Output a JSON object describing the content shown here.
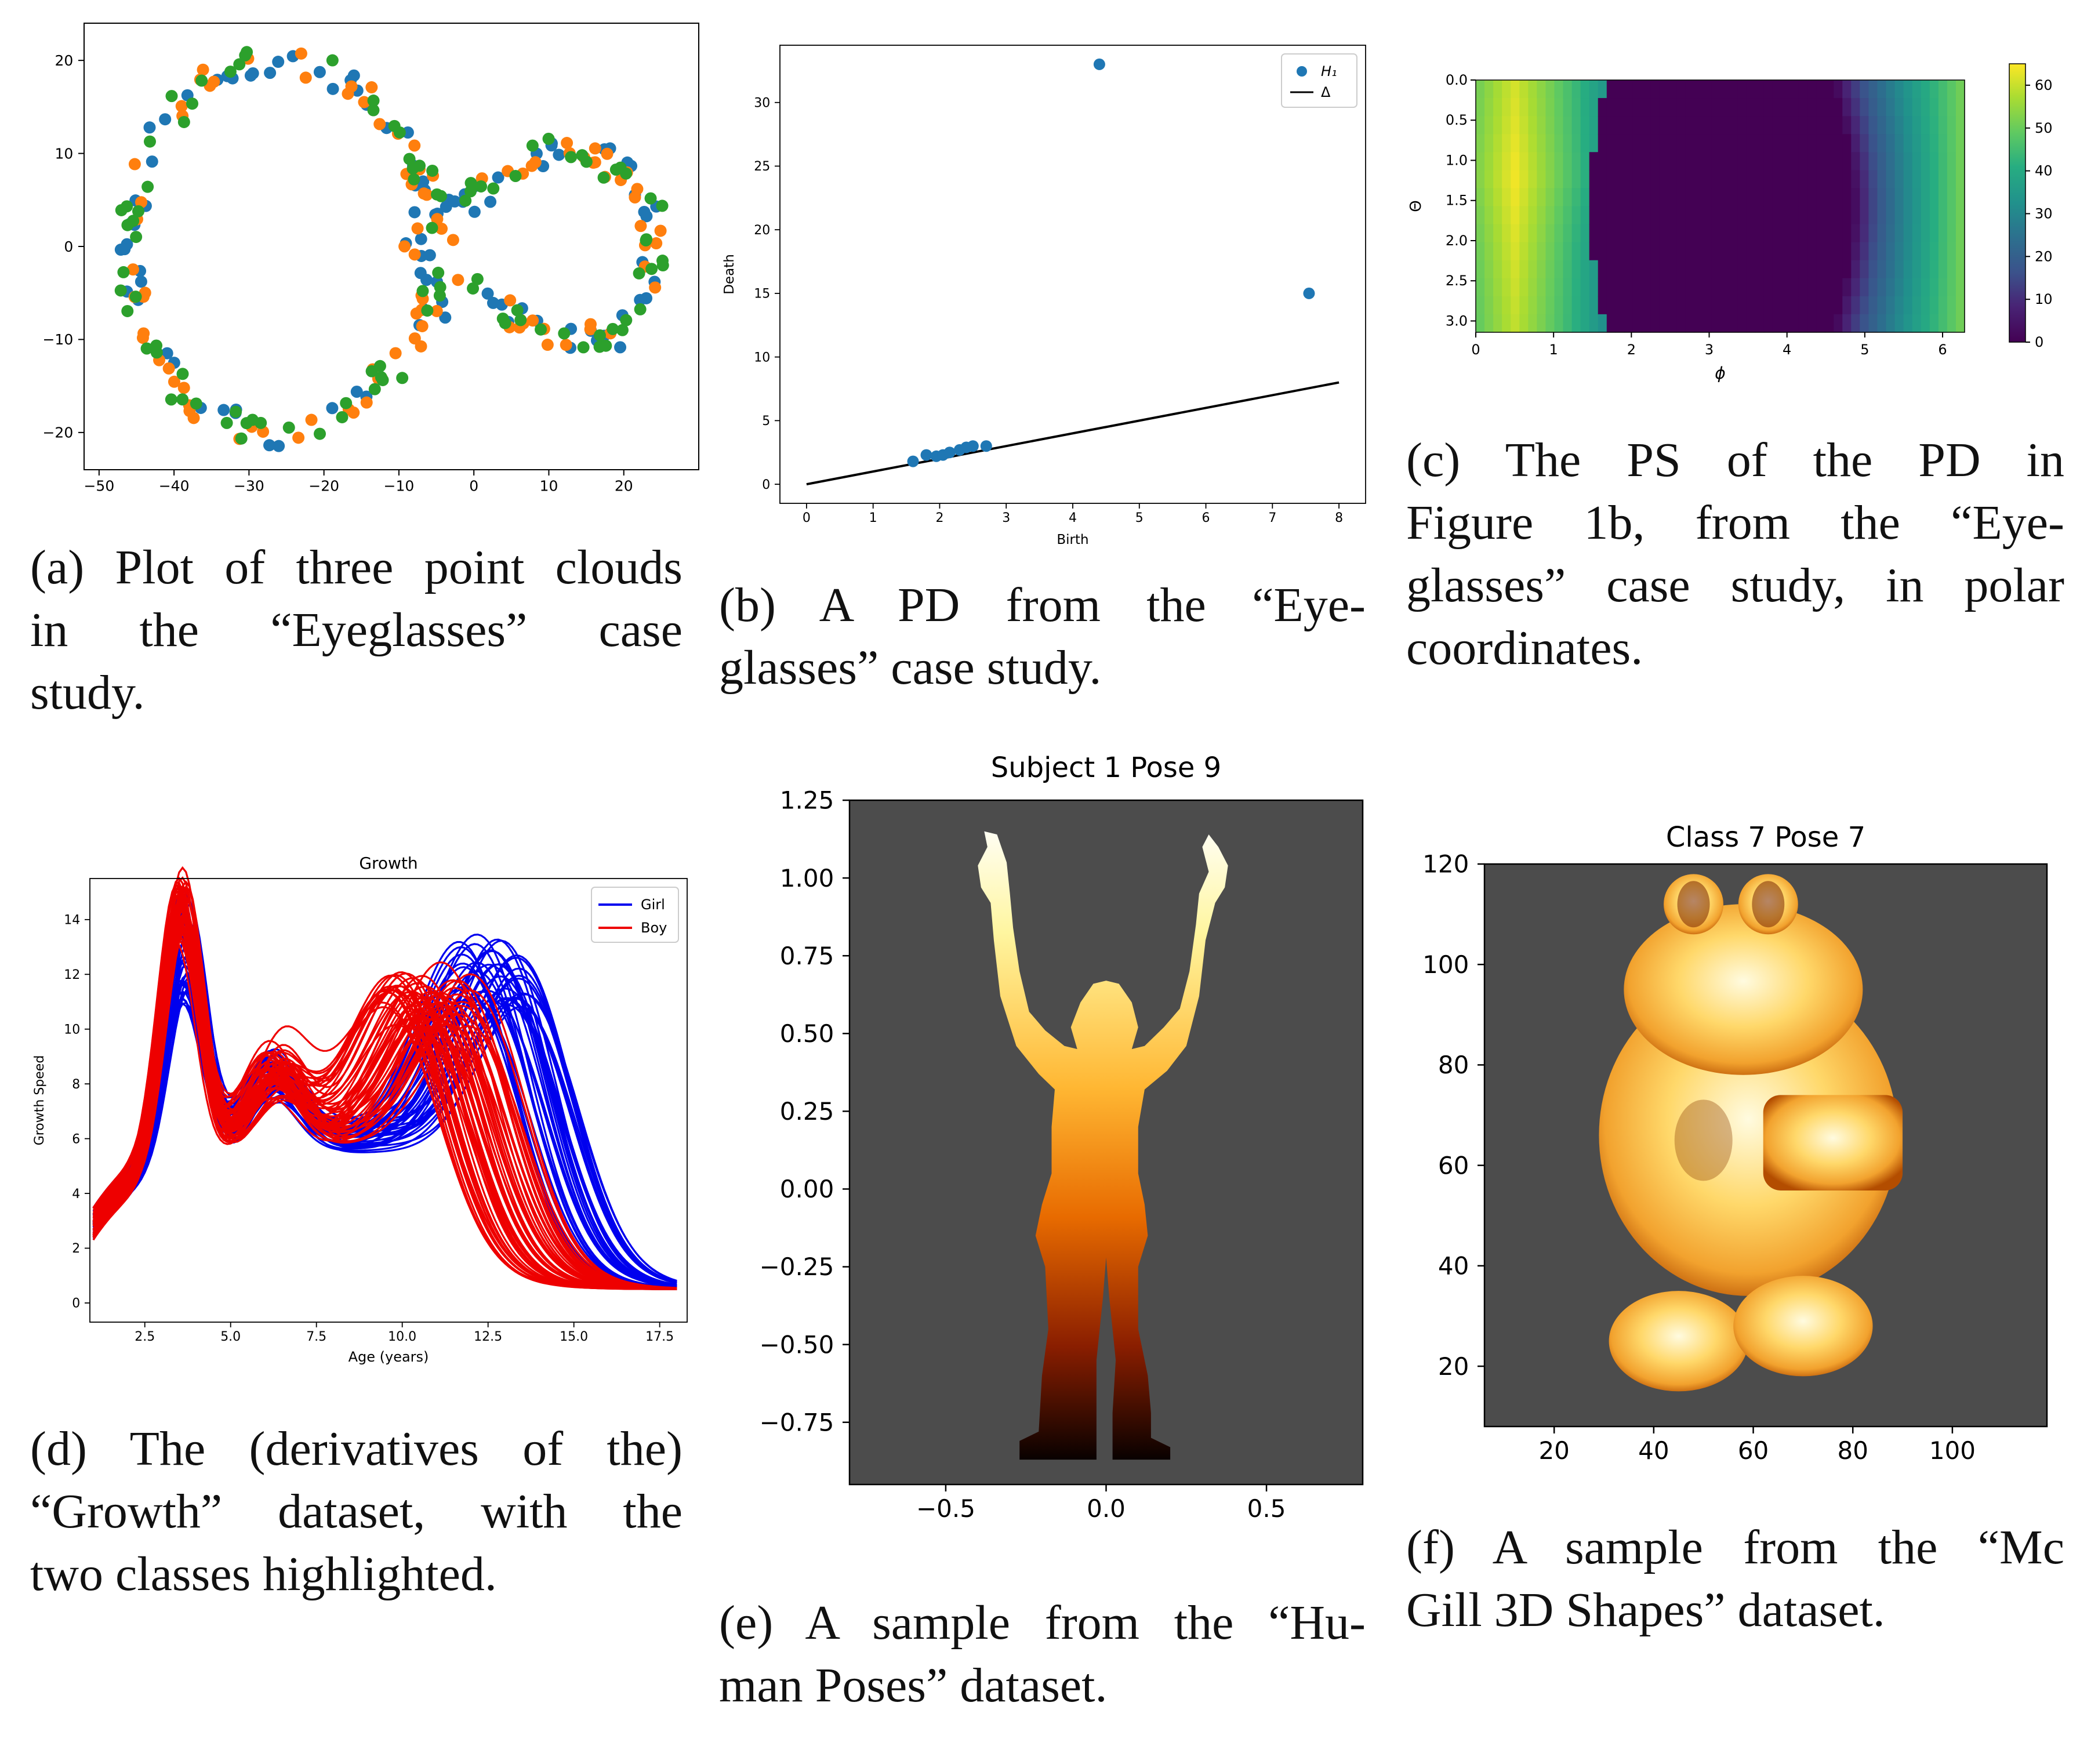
{
  "palette": {
    "c0": "#1f77b4",
    "c1": "#ff7f0e",
    "c2": "#2ca02c",
    "girl": "#0000ee",
    "boy": "#ee0000",
    "img_bg": "#4c4c4c"
  },
  "captions": {
    "a": [
      "(a) Plot of three point clouds",
      "in the “Eyeglasses” case",
      "study."
    ],
    "b": [
      "(b) A PD from the “Eye-",
      "glasses” case study."
    ],
    "c": [
      "(c) The PS of the PD in",
      "Figure 1b, from the “Eye-",
      "glasses” case study, in polar",
      "coordinates."
    ],
    "d": [
      "(d) The (derivatives of the)",
      "“Growth” dataset, with the",
      "two classes highlighted."
    ],
    "e": [
      "(e) A sample from the “Hu-",
      "man Poses” dataset."
    ],
    "f": [
      "(f) A sample from the “Mc",
      "Gill 3D Shapes” dataset."
    ]
  },
  "chart_data": [
    {
      "id": "a",
      "type": "scatter",
      "title": "",
      "xlabel": "",
      "ylabel": "",
      "xlim": [
        -52,
        30
      ],
      "ylim": [
        -24,
        24
      ],
      "xticks": [
        -50,
        -40,
        -30,
        -20,
        -10,
        0,
        10,
        20
      ],
      "yticks": [
        -20,
        -10,
        0,
        10,
        20
      ],
      "shape": {
        "big_circle": {
          "center": [
            -26,
            0
          ],
          "radius": 20
        },
        "small_circle": {
          "center": [
            13,
            0
          ],
          "radius": 11
        },
        "bridge_upper_y": 5,
        "bridge_lower_y": -4
      },
      "points_per_series": 100,
      "series": [
        {
          "color_key": "c0",
          "seed": 11
        },
        {
          "color_key": "c1",
          "seed": 23
        },
        {
          "color_key": "c2",
          "seed": 37
        }
      ],
      "grid": false
    },
    {
      "id": "b",
      "type": "scatter",
      "title": "",
      "xlabel": "Birth",
      "ylabel": "Death",
      "xlim": [
        -0.4,
        8.4
      ],
      "ylim": [
        -1.5,
        34.5
      ],
      "xticks": [
        0,
        1,
        2,
        3,
        4,
        5,
        6,
        7,
        8
      ],
      "yticks": [
        0,
        5,
        10,
        15,
        20,
        25,
        30
      ],
      "series": [
        {
          "name": "H₁",
          "points": [
            [
              1.6,
              1.8
            ],
            [
              1.8,
              2.3
            ],
            [
              1.95,
              2.2
            ],
            [
              2.05,
              2.3
            ],
            [
              2.15,
              2.5
            ],
            [
              2.3,
              2.7
            ],
            [
              2.4,
              2.9
            ],
            [
              2.5,
              3.0
            ],
            [
              2.7,
              3.0
            ],
            [
              4.4,
              33.0
            ],
            [
              7.55,
              15.0
            ]
          ]
        },
        {
          "name": "Δ",
          "line": [
            [
              0,
              0
            ],
            [
              8,
              8
            ]
          ]
        }
      ],
      "legend": "top-right",
      "grid": false
    },
    {
      "id": "c",
      "type": "heatmap",
      "title": "",
      "xlabel": "ϕ",
      "ylabel": "Θ",
      "xlim": [
        0,
        6.283
      ],
      "ylim": [
        3.141,
        0
      ],
      "xticks": [
        0,
        1,
        2,
        3,
        4,
        5,
        6
      ],
      "yticks": [
        0.0,
        0.5,
        1.0,
        1.5,
        2.0,
        2.5,
        3.0
      ],
      "ytick_labels": [
        "0.0",
        "0.5",
        "1.0",
        "1.5",
        "2.0",
        "2.5",
        "3.0"
      ],
      "colorbar_ticks": [
        0,
        10,
        20,
        30,
        40,
        50,
        60
      ],
      "colormap": "viridis",
      "vmax": 65,
      "profile": {
        "peak_phi": 0.5,
        "peak_theta": 1.2,
        "peak_value": 64,
        "left_edge_value": 55,
        "zero_from_phi": 1.7,
        "zero_to_phi": 4.6,
        "right_edge_value": 52
      }
    },
    {
      "id": "d",
      "type": "line",
      "title": "Growth",
      "xlabel": "Age (years)",
      "ylabel": "Growth Speed",
      "xlim": [
        0.9,
        18.3
      ],
      "ylim": [
        -0.7,
        15.5
      ],
      "xticks": [
        2.5,
        5.0,
        7.5,
        10.0,
        12.5,
        15.0,
        17.5
      ],
      "xtick_labels": [
        "2.5",
        "5.0",
        "7.5",
        "10.0",
        "12.5",
        "15.0",
        "17.5"
      ],
      "yticks": [
        0,
        2,
        4,
        6,
        8,
        10,
        12,
        14
      ],
      "series": [
        {
          "name": "Girl",
          "color_key": "girl",
          "count": 39,
          "seed": 5,
          "peak_age": [
            3.5,
            3.8
          ],
          "peak_height": [
            9.8,
            14.2
          ],
          "pubertal_age": [
            11.8,
            13.8
          ],
          "pubertal_height": [
            6.5,
            9.7
          ]
        },
        {
          "name": "Boy",
          "color_key": "boy",
          "count": 54,
          "seed": 9,
          "peak_age": [
            3.4,
            3.7
          ],
          "peak_height": [
            12.5,
            14.8
          ],
          "pubertal_age": [
            9.6,
            12.2
          ],
          "pubertal_height": [
            6.0,
            8.2
          ]
        }
      ],
      "legend": "top-right",
      "grid": false
    },
    {
      "id": "e",
      "type": "image",
      "title": "Subject 1 Pose 9",
      "xlim": [
        -0.8,
        0.8
      ],
      "ylim": [
        -0.95,
        1.25
      ],
      "xticks": [
        -0.5,
        0.0,
        0.5
      ],
      "xtick_labels": [
        "−0.5",
        "0.0",
        "0.5"
      ],
      "yticks": [
        -0.75,
        -0.5,
        -0.25,
        0.0,
        0.25,
        0.5,
        0.75,
        1.0,
        1.25
      ],
      "ytick_labels": [
        "−0.75",
        "−0.50",
        "−0.25",
        "0.00",
        "0.25",
        "0.50",
        "0.75",
        "1.00",
        "1.25"
      ],
      "colormap": "afmhot"
    },
    {
      "id": "f",
      "type": "image",
      "title": "Class 7 Pose 7",
      "xlim": [
        6,
        119
      ],
      "ylim": [
        8,
        120
      ],
      "xticks": [
        20,
        40,
        60,
        80,
        100
      ],
      "yticks": [
        20,
        40,
        60,
        80,
        100,
        120
      ],
      "colormap": "afmhot"
    }
  ]
}
